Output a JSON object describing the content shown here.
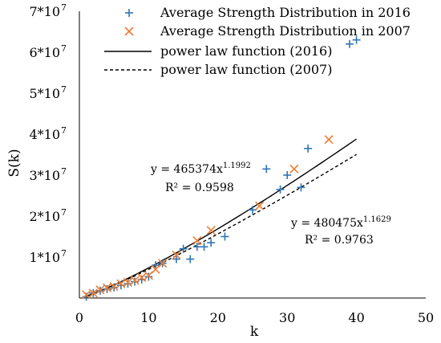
{
  "chart_data": {
    "type": "scatter",
    "xlabel": "k",
    "ylabel": "S(k)",
    "xlim": [
      0,
      50
    ],
    "ylim": [
      0,
      70000000
    ],
    "x_ticks": [
      0,
      10,
      20,
      30,
      40,
      50
    ],
    "x_tick_labels": [
      "0",
      "10",
      "20",
      "30",
      "40",
      "50"
    ],
    "y_ticks": [
      10000000,
      20000000,
      30000000,
      40000000,
      50000000,
      60000000,
      70000000
    ],
    "y_tick_labels": [
      "1*10",
      "2*10",
      "3*10",
      "4*10",
      "5*10",
      "6*10",
      "7*10"
    ],
    "y_tick_exponent": "7",
    "grid": false,
    "legend_position": "top-right",
    "series": [
      {
        "name": "Average Strength Distribution in 2016",
        "kind": "scatter",
        "marker": "plus",
        "color": "#2e75b6",
        "x": [
          1,
          2,
          3,
          4,
          5,
          6,
          7,
          8,
          9,
          10,
          11,
          12,
          14,
          15,
          16,
          17,
          18,
          19,
          21,
          25,
          27,
          29,
          30,
          32,
          33,
          39,
          40
        ],
        "y": [
          300000,
          1200000,
          1800000,
          2200000,
          2600000,
          3100000,
          3500000,
          4000000,
          4500000,
          5200000,
          8000000,
          8500000,
          9500000,
          12000000,
          9500000,
          12500000,
          12500000,
          13500000,
          15000000,
          21500000,
          31500000,
          26500000,
          30000000,
          27000000,
          36500000,
          62000000,
          63000000
        ]
      },
      {
        "name": "Average Strength Distribution in 2007",
        "kind": "scatter",
        "marker": "x",
        "color": "#ed7d31",
        "x": [
          1,
          2,
          3,
          4,
          5,
          6,
          7,
          8,
          9,
          10,
          11,
          12,
          14,
          17,
          19,
          26,
          31,
          36
        ],
        "y": [
          800000,
          1200000,
          2000000,
          2500000,
          2800000,
          3500000,
          3800000,
          4300000,
          5000000,
          5500000,
          7000000,
          8500000,
          10500000,
          14000000,
          16500000,
          22500000,
          31500000,
          38700000
        ]
      },
      {
        "name": "power law function (2016)",
        "kind": "line",
        "dash": "solid",
        "color": "#000000",
        "coefficient": 465374,
        "exponent": 1.1992,
        "x_range": [
          1,
          40
        ]
      },
      {
        "name": "power law function (2007)",
        "kind": "line",
        "dash": "dashed",
        "color": "#000000",
        "coefficient": 480475,
        "exponent": 1.1629,
        "x_range": [
          1,
          40
        ]
      }
    ],
    "annotations": [
      {
        "id": "fit2016",
        "equation_base": "y = 465374x",
        "equation_exponent": "1.1992",
        "r2": "R² = 0.9598"
      },
      {
        "id": "fit2007",
        "equation_base": "y = 480475x",
        "equation_exponent": "1.1629",
        "r2": "R² = 0.9763"
      }
    ]
  }
}
